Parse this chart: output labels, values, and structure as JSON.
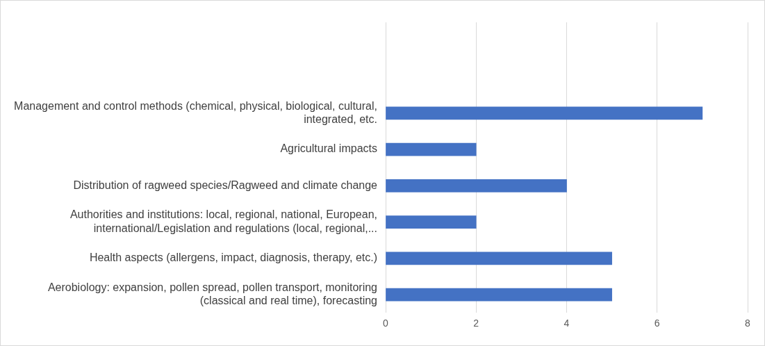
{
  "chart_data": {
    "type": "bar",
    "orientation": "horizontal",
    "categories": [
      null,
      null,
      "Management and control methods (chemical, physical, biological, cultural, integrated, etc.",
      "Agricultural impacts",
      "Distribution of ragweed species/Ragweed and climate change",
      "Authorities and institutions: local, regional, national, European, international/Legislation and regulations (local, regional,...",
      "Health aspects (allergens, impact, diagnosis, therapy, etc.)",
      "Aerobiology: expansion, pollen spread, pollen transport, monitoring (classical and real time), forecasting"
    ],
    "values": [
      null,
      null,
      7,
      2,
      4,
      2,
      5,
      5
    ],
    "color": "#4472c4",
    "xlim": [
      0,
      8
    ],
    "xticks": [
      0,
      2,
      4,
      6,
      8
    ],
    "grid": "x"
  }
}
